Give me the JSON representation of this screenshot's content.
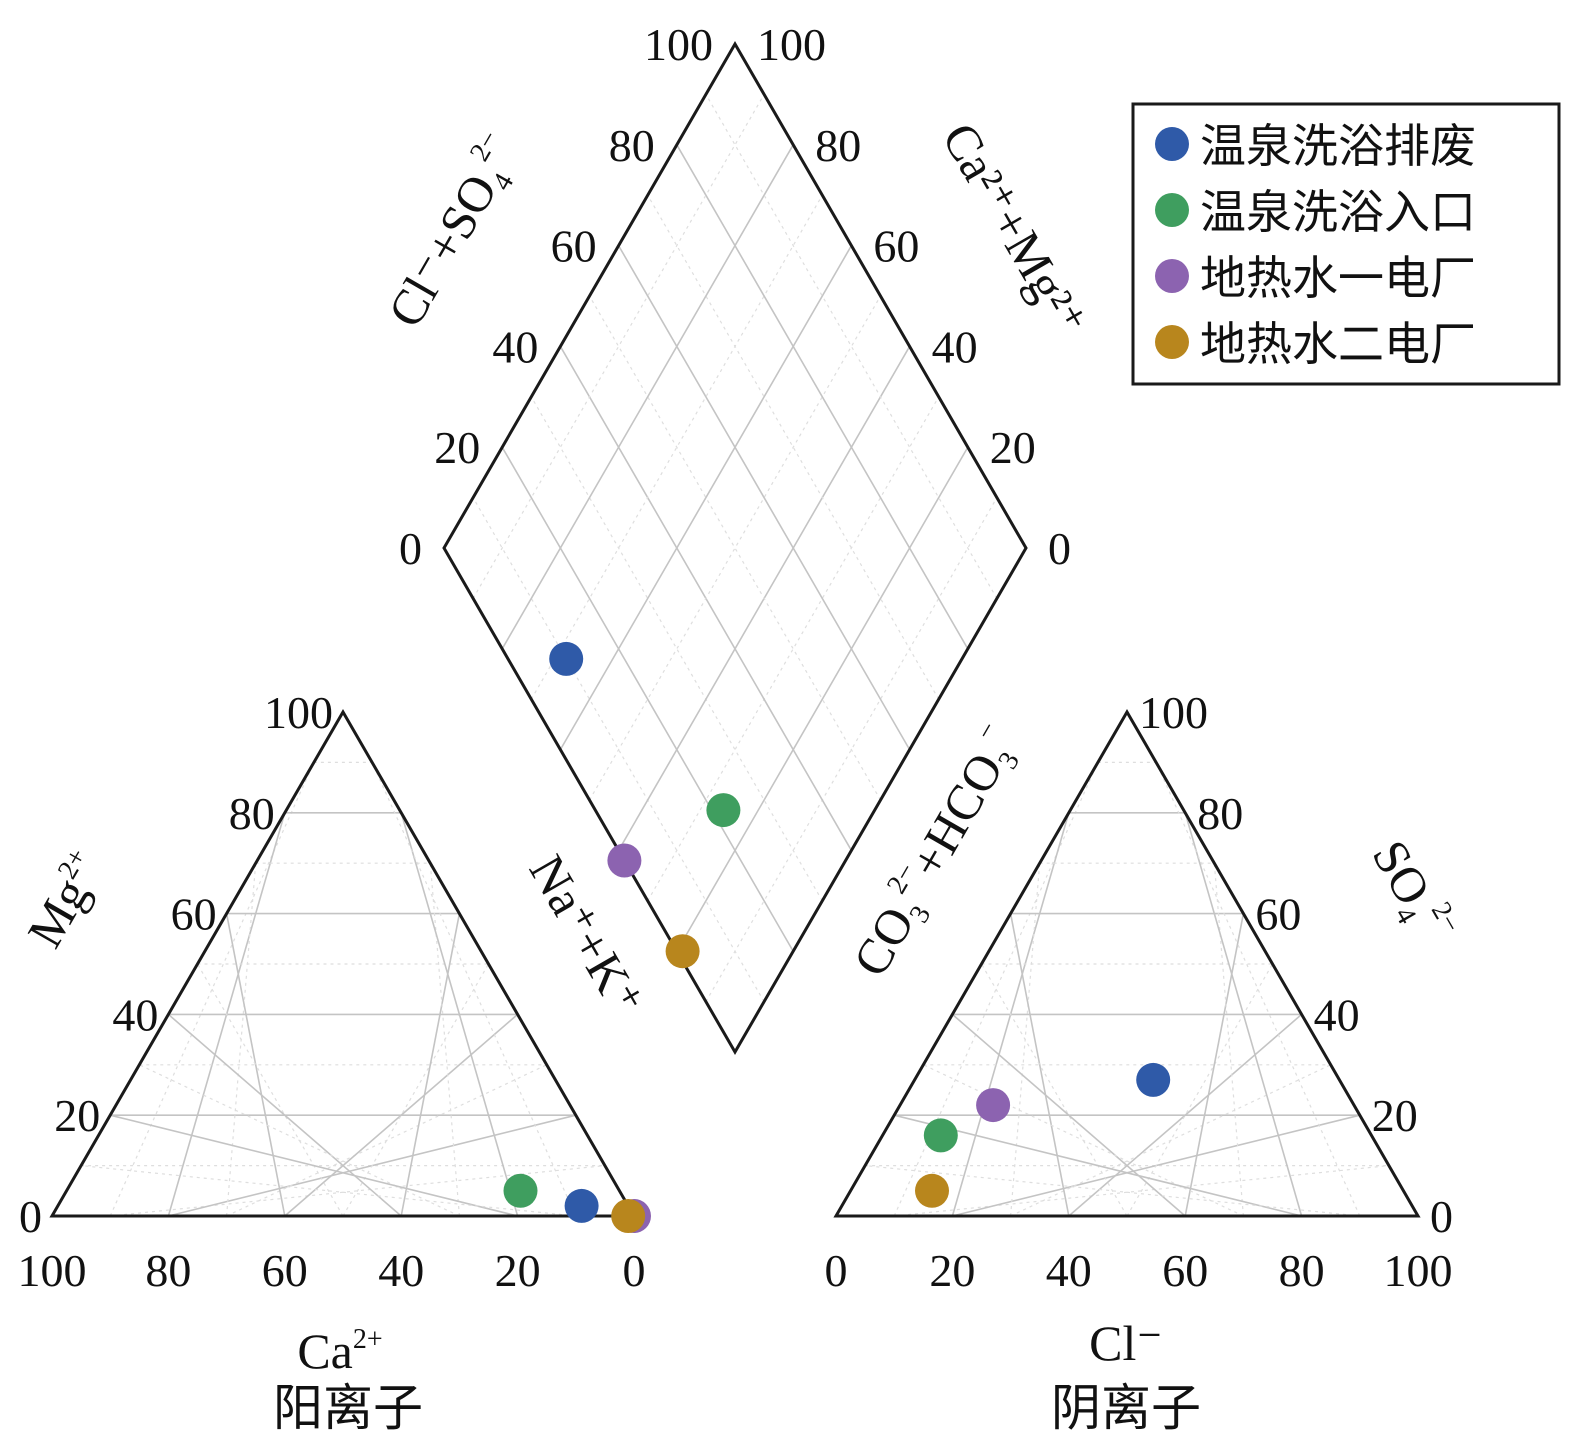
{
  "chart_data": {
    "type": "scatter",
    "diagram": "piper",
    "legend": {
      "placement": "top-right",
      "entries": [
        {
          "label": "温泉洗浴排废",
          "color": "#2f5aa8"
        },
        {
          "label": "温泉洗浴入口",
          "color": "#3f9e5f"
        },
        {
          "label": "地热水一电厂",
          "color": "#8c63b0"
        },
        {
          "label": "地热水二电厂",
          "color": "#b8861d"
        }
      ]
    },
    "cation": {
      "title": "阳离子",
      "bottom_label": "Ca",
      "bottom_label_charge": "2+",
      "left_label": "Mg",
      "left_label_charge": "2+",
      "right_label": "Na⁺+K⁺",
      "bottom_ticks": [
        "100",
        "80",
        "60",
        "40",
        "20",
        "0"
      ],
      "left_ticks": [
        "0",
        "20",
        "40",
        "60",
        "80",
        "100"
      ],
      "points": [
        {
          "series": 0,
          "ca": 8,
          "mg": 2,
          "na_k": 90
        },
        {
          "series": 1,
          "ca": 17,
          "mg": 5,
          "na_k": 78
        },
        {
          "series": 2,
          "ca": 0,
          "mg": 0,
          "na_k": 100
        },
        {
          "series": 3,
          "ca": 1,
          "mg": 0,
          "na_k": 99
        }
      ]
    },
    "anion": {
      "title": "阴离子",
      "bottom_label": "Cl⁻",
      "left_label": "CO",
      "left_label_tail": "+HCO",
      "right_label": "SO",
      "bottom_ticks": [
        "0",
        "20",
        "40",
        "60",
        "80",
        "100"
      ],
      "right_ticks": [
        "0",
        "20",
        "40",
        "60",
        "80",
        "100"
      ],
      "points": [
        {
          "series": 0,
          "cl": 41,
          "so4": 27,
          "co3_hco3": 32
        },
        {
          "series": 1,
          "cl": 10,
          "so4": 16,
          "co3_hco3": 74
        },
        {
          "series": 2,
          "cl": 16,
          "so4": 22,
          "co3_hco3": 62
        },
        {
          "series": 3,
          "cl": 14,
          "so4": 5,
          "co3_hco3": 81
        }
      ]
    },
    "diamond": {
      "left_label": "Cl⁻+SO",
      "right_label": "Ca²⁺+Mg²⁺",
      "left_ticks": [
        "0",
        "20",
        "40",
        "60",
        "80",
        "100"
      ],
      "right_ticks": [
        "0",
        "20",
        "40",
        "60",
        "80",
        "100"
      ],
      "points": [
        {
          "series": 0,
          "cl_so4": 68,
          "ca_mg": 10
        },
        {
          "series": 1,
          "cl_so4": 26,
          "ca_mg": 22
        },
        {
          "series": 2,
          "cl_so4": 38,
          "ca_mg": 0
        },
        {
          "series": 3,
          "cl_so4": 19,
          "ca_mg": 1
        }
      ]
    }
  }
}
